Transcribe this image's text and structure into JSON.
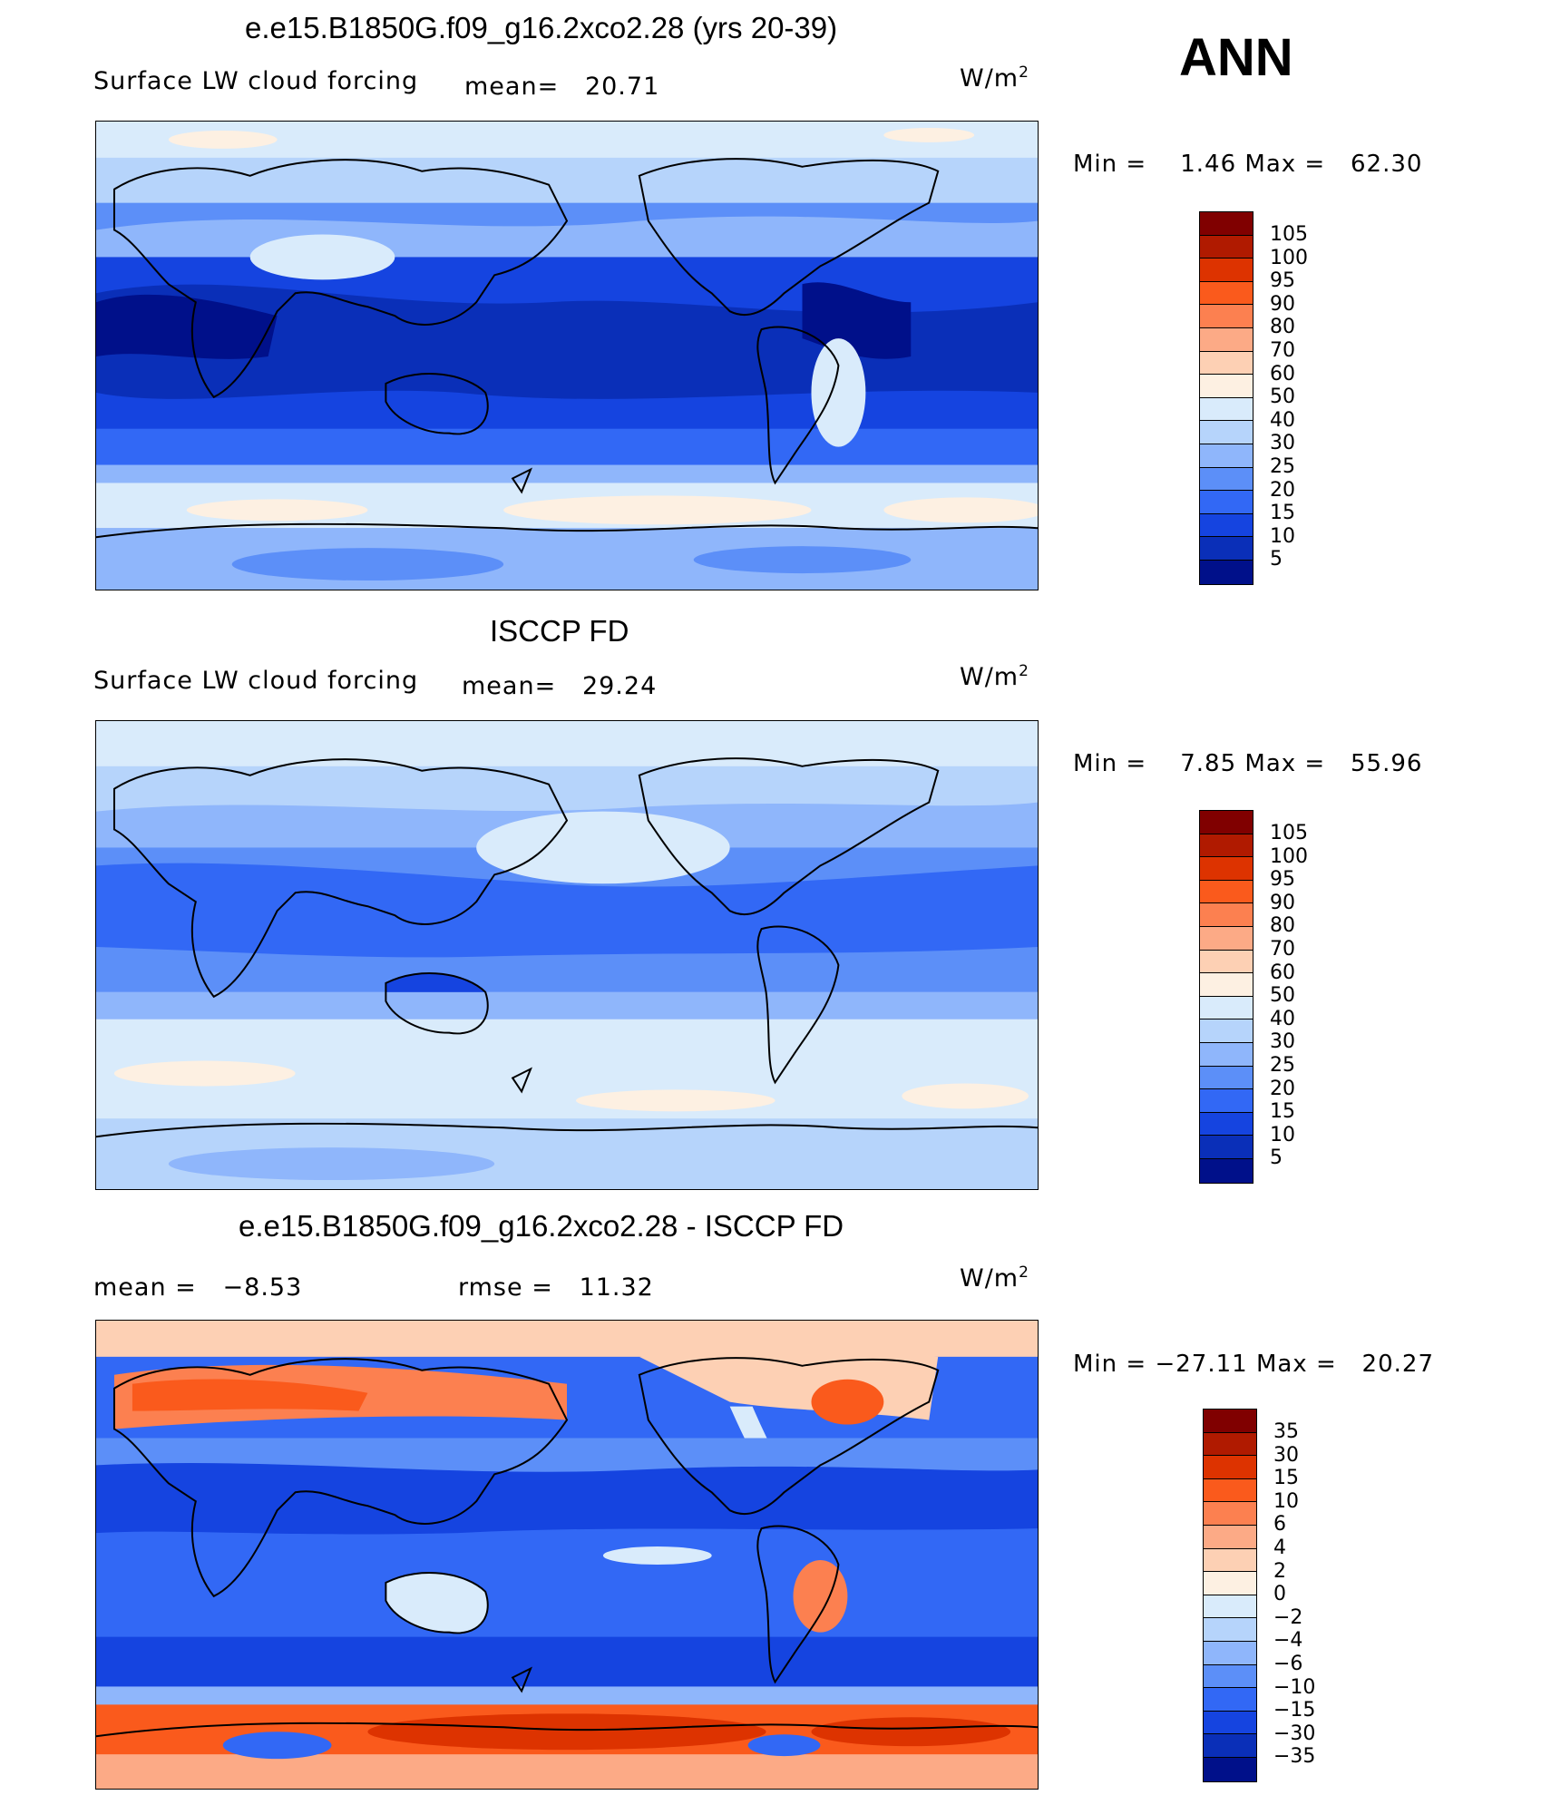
{
  "season": "ANN",
  "unit_label": "W/m",
  "unit_sup": "2",
  "panels": [
    {
      "title": "e.e15.B1850G.f09_g16.2xco2.28 (yrs 20-39)",
      "variable": "Surface LW cloud forcing",
      "mean_label": "mean=",
      "mean_value": "20.71",
      "min_label": "Min =",
      "min_value": "1.46",
      "max_label": "Max =",
      "max_value": "62.30",
      "levels": [
        "105",
        "100",
        "95",
        "90",
        "80",
        "70",
        "60",
        "50",
        "40",
        "30",
        "25",
        "20",
        "15",
        "10",
        "5"
      ]
    },
    {
      "title": "ISCCP FD",
      "variable": "Surface LW cloud forcing",
      "mean_label": "mean=",
      "mean_value": "29.24",
      "min_label": "Min =",
      "min_value": "7.85",
      "max_label": "Max =",
      "max_value": "55.96",
      "levels": [
        "105",
        "100",
        "95",
        "90",
        "80",
        "70",
        "60",
        "50",
        "40",
        "30",
        "25",
        "20",
        "15",
        "10",
        "5"
      ]
    },
    {
      "title": "e.e15.B1850G.f09_g16.2xco2.28 - ISCCP FD",
      "mean_label": "mean =",
      "mean_value": "−8.53",
      "rmse_label": "rmse =",
      "rmse_value": "11.32",
      "min_label": "Min =",
      "min_value": "−27.11",
      "max_label": "Max =",
      "max_value": "20.27",
      "levels": [
        "35",
        "30",
        "15",
        "10",
        "6",
        "4",
        "2",
        "0",
        "−2",
        "−4",
        "−6",
        "−10",
        "−15",
        "−30",
        "−35"
      ]
    }
  ],
  "colorbar_colors": [
    "#800000",
    "#b01a00",
    "#dd3300",
    "#fa5a1c",
    "#fc8050",
    "#fcaa86",
    "#fdd0b4",
    "#fdf0e2",
    "#d9ebfb",
    "#b6d4fb",
    "#8fb6fb",
    "#5c8ff8",
    "#3268f5",
    "#1544e0",
    "#0a2fb8",
    "#00108a"
  ]
}
